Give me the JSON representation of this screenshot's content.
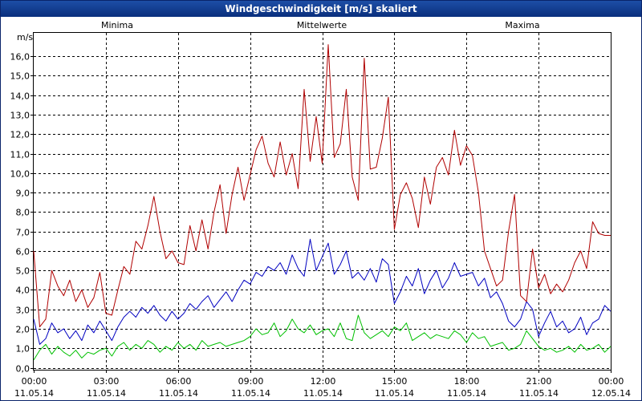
{
  "window": {
    "title": "Windgeschwindigkeit [m/s] skaliert"
  },
  "chart_data": {
    "type": "line",
    "title": "Windgeschwindigkeit [m/s] skaliert",
    "ylabel": "m/s",
    "xlabel": "",
    "ylim": [
      -0.1,
      17.2
    ],
    "yticks": [
      0,
      1,
      2,
      3,
      4,
      5,
      6,
      7,
      8,
      9,
      10,
      11,
      12,
      13,
      14,
      15,
      16
    ],
    "ytick_labels": [
      "0,0",
      "1,0",
      "2,0",
      "3,0",
      "4,0",
      "5,0",
      "6,0",
      "7,0",
      "8,0",
      "9,0",
      "10,0",
      "11,0",
      "12,0",
      "13,0",
      "14,0",
      "15,0",
      "16,0"
    ],
    "xlim_hours": [
      0,
      24
    ],
    "xtick_hours": [
      0,
      3,
      6,
      9,
      12,
      15,
      18,
      21,
      24
    ],
    "xtick_times": [
      "00:00",
      "03:00",
      "06:00",
      "09:00",
      "12:00",
      "15:00",
      "18:00",
      "21:00",
      "00:00"
    ],
    "xtick_dates": [
      "11.05.14",
      "11.05.14",
      "11.05.14",
      "11.05.14",
      "11.05.14",
      "11.05.14",
      "11.05.14",
      "11.05.14",
      "12.05.14"
    ],
    "grid": true,
    "legend_position": "top",
    "series": [
      {
        "name": "Minima",
        "color": "#00c000",
        "x": [
          0,
          0.25,
          0.5,
          0.75,
          1,
          1.25,
          1.5,
          1.75,
          2,
          2.25,
          2.5,
          2.75,
          3,
          3.25,
          3.5,
          3.75,
          4,
          4.25,
          4.5,
          4.75,
          5,
          5.25,
          5.5,
          5.75,
          6,
          6.25,
          6.5,
          6.75,
          7,
          7.25,
          7.5,
          7.75,
          8,
          8.25,
          8.5,
          8.75,
          9,
          9.25,
          9.5,
          9.75,
          10,
          10.25,
          10.5,
          10.75,
          11,
          11.25,
          11.5,
          11.75,
          12,
          12.25,
          12.5,
          12.75,
          13,
          13.25,
          13.5,
          13.75,
          14,
          14.25,
          14.5,
          14.75,
          15,
          15.25,
          15.5,
          15.75,
          16,
          16.25,
          16.5,
          16.75,
          17,
          17.25,
          17.5,
          17.75,
          18,
          18.25,
          18.5,
          18.75,
          19,
          19.25,
          19.5,
          19.75,
          20,
          20.25,
          20.5,
          20.75,
          21,
          21.25,
          21.5,
          21.75,
          22,
          22.25,
          22.5,
          22.75,
          23,
          23.25,
          23.5,
          23.75,
          24
        ],
        "values": [
          0.4,
          0.9,
          1.2,
          0.7,
          1.1,
          0.8,
          0.6,
          0.9,
          0.5,
          0.8,
          0.7,
          0.9,
          1.0,
          0.6,
          1.1,
          1.3,
          0.9,
          1.2,
          1.0,
          1.4,
          1.2,
          0.8,
          1.1,
          0.9,
          1.3,
          1.0,
          1.2,
          0.9,
          1.4,
          1.1,
          1.2,
          1.3,
          1.1,
          1.2,
          1.3,
          1.4,
          1.6,
          2.0,
          1.7,
          1.8,
          2.3,
          1.6,
          1.9,
          2.5,
          2.0,
          1.8,
          2.2,
          1.7,
          1.9,
          2.0,
          1.6,
          2.3,
          1.5,
          1.4,
          2.7,
          1.8,
          1.5,
          1.7,
          1.9,
          1.6,
          2.1,
          1.9,
          2.3,
          1.4,
          1.6,
          1.8,
          1.5,
          1.7,
          1.6,
          1.5,
          1.9,
          1.7,
          1.3,
          1.8,
          1.5,
          1.6,
          1.1,
          1.2,
          1.3,
          0.9,
          1.0,
          1.2,
          1.9,
          1.5,
          1.1,
          0.9,
          1.0,
          0.8,
          0.9,
          1.1,
          0.8,
          1.2,
          0.9,
          1.0,
          1.2,
          0.8,
          1.1
        ]
      },
      {
        "name": "Mittelwerte",
        "color": "#0000c0",
        "x": [
          0,
          0.25,
          0.5,
          0.75,
          1,
          1.25,
          1.5,
          1.75,
          2,
          2.25,
          2.5,
          2.75,
          3,
          3.25,
          3.5,
          3.75,
          4,
          4.25,
          4.5,
          4.75,
          5,
          5.25,
          5.5,
          5.75,
          6,
          6.25,
          6.5,
          6.75,
          7,
          7.25,
          7.5,
          7.75,
          8,
          8.25,
          8.5,
          8.75,
          9,
          9.25,
          9.5,
          9.75,
          10,
          10.25,
          10.5,
          10.75,
          11,
          11.25,
          11.5,
          11.75,
          12,
          12.25,
          12.5,
          12.75,
          13,
          13.25,
          13.5,
          13.75,
          14,
          14.25,
          14.5,
          14.75,
          15,
          15.25,
          15.5,
          15.75,
          16,
          16.25,
          16.5,
          16.75,
          17,
          17.25,
          17.5,
          17.75,
          18,
          18.25,
          18.5,
          18.75,
          19,
          19.25,
          19.5,
          19.75,
          20,
          20.25,
          20.5,
          20.75,
          21,
          21.25,
          21.5,
          21.75,
          22,
          22.25,
          22.5,
          22.75,
          23,
          23.25,
          23.5,
          23.75,
          24
        ],
        "values": [
          2.5,
          1.2,
          1.5,
          2.3,
          1.8,
          2.0,
          1.5,
          1.9,
          1.4,
          2.2,
          1.8,
          2.4,
          1.9,
          1.4,
          2.1,
          2.6,
          2.9,
          2.6,
          3.1,
          2.8,
          3.2,
          2.7,
          2.4,
          2.9,
          2.5,
          2.8,
          3.3,
          3.0,
          3.4,
          3.7,
          3.1,
          3.5,
          3.9,
          3.4,
          4.0,
          4.5,
          4.3,
          4.9,
          4.7,
          5.2,
          5.0,
          5.4,
          4.8,
          5.8,
          5.1,
          4.7,
          6.6,
          5.0,
          5.7,
          6.4,
          4.8,
          5.3,
          6.0,
          4.6,
          4.9,
          4.5,
          5.1,
          4.4,
          5.6,
          5.3,
          3.3,
          3.9,
          4.7,
          4.2,
          5.1,
          3.8,
          4.5,
          5.0,
          4.1,
          4.6,
          5.4,
          4.7,
          4.8,
          4.9,
          4.2,
          4.6,
          3.6,
          3.9,
          3.3,
          2.4,
          2.1,
          2.5,
          3.4,
          3.0,
          1.6,
          2.3,
          2.9,
          2.1,
          2.4,
          1.8,
          2.0,
          2.6,
          1.7,
          2.3,
          2.5,
          3.2,
          2.9
        ]
      },
      {
        "name": "Maxima",
        "color": "#b00000",
        "x": [
          0,
          0.25,
          0.5,
          0.75,
          1,
          1.25,
          1.5,
          1.75,
          2,
          2.25,
          2.5,
          2.75,
          3,
          3.25,
          3.5,
          3.75,
          4,
          4.25,
          4.5,
          4.75,
          5,
          5.25,
          5.5,
          5.75,
          6,
          6.25,
          6.5,
          6.75,
          7,
          7.25,
          7.5,
          7.75,
          8,
          8.25,
          8.5,
          8.75,
          9,
          9.25,
          9.5,
          9.75,
          10,
          10.25,
          10.5,
          10.75,
          11,
          11.25,
          11.5,
          11.75,
          12,
          12.25,
          12.5,
          12.75,
          13,
          13.25,
          13.5,
          13.75,
          14,
          14.25,
          14.5,
          14.75,
          15,
          15.25,
          15.5,
          15.75,
          16,
          16.25,
          16.5,
          16.75,
          17,
          17.25,
          17.5,
          17.75,
          18,
          18.25,
          18.5,
          18.75,
          19,
          19.25,
          19.5,
          19.75,
          20,
          20.25,
          20.5,
          20.75,
          21,
          21.25,
          21.5,
          21.75,
          22,
          22.25,
          22.5,
          22.75,
          23,
          23.25,
          23.5,
          23.75,
          24
        ],
        "values": [
          6.0,
          2.1,
          2.5,
          5.0,
          4.2,
          3.7,
          4.5,
          3.4,
          4.0,
          3.1,
          3.6,
          4.9,
          2.8,
          2.7,
          4.0,
          5.2,
          4.8,
          6.5,
          6.1,
          7.3,
          8.8,
          7.0,
          5.6,
          6.0,
          5.4,
          5.3,
          7.3,
          6.0,
          7.6,
          6.1,
          8.0,
          9.4,
          6.9,
          8.9,
          10.3,
          8.6,
          9.9,
          11.2,
          11.9,
          10.5,
          9.8,
          11.6,
          9.9,
          11.0,
          9.2,
          14.3,
          10.6,
          12.9,
          10.5,
          16.6,
          10.8,
          11.5,
          14.3,
          9.8,
          8.6,
          15.9,
          10.2,
          10.3,
          11.8,
          13.9,
          7.1,
          8.9,
          9.5,
          8.7,
          7.2,
          9.8,
          8.4,
          10.3,
          10.8,
          9.9,
          12.2,
          10.4,
          11.4,
          10.9,
          9.0,
          6.0,
          5.1,
          4.2,
          4.5,
          7.0,
          8.9,
          3.7,
          3.4,
          6.1,
          4.1,
          4.8,
          3.8,
          4.3,
          3.9,
          4.5,
          5.4,
          6.0,
          5.1,
          7.5,
          6.9,
          6.8,
          6.8
        ]
      }
    ]
  }
}
